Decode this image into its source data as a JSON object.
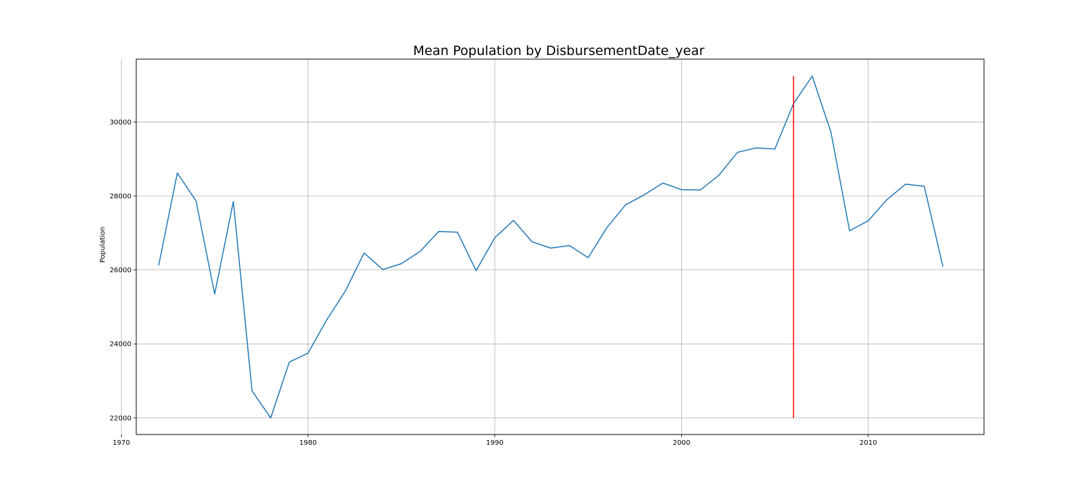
{
  "chart_data": {
    "type": "line",
    "title": "Mean Population by DisbursementDate_year",
    "xlabel": "",
    "ylabel": "Population",
    "xlim": [
      1970.8,
      2016.2
    ],
    "ylim": [
      21550,
      31700
    ],
    "grid": true,
    "xticks": [
      1970,
      1980,
      1990,
      2000,
      2010
    ],
    "yticks": [
      22000,
      24000,
      26000,
      28000,
      30000
    ],
    "line_color": "#1f77b4",
    "series": [
      {
        "x": [
          1972,
          1973,
          1974,
          1975,
          1976,
          1977,
          1978,
          1979,
          1980,
          1981,
          1982,
          1983,
          1984,
          1985,
          1986,
          1987,
          1988,
          1989,
          1990,
          1991,
          1992,
          1993,
          1994,
          1995,
          1996,
          1997,
          1998,
          1999,
          2000,
          2001,
          2002,
          2003,
          2004,
          2005,
          2006,
          2007,
          2008,
          2009,
          2010,
          2011,
          2012,
          2013,
          2014
        ],
        "values": [
          26120,
          28620,
          27870,
          25350,
          27850,
          22730,
          22000,
          23510,
          23750,
          24650,
          25430,
          26460,
          26010,
          26170,
          26500,
          27040,
          27020,
          25980,
          26870,
          27340,
          26760,
          26590,
          26660,
          26330,
          27140,
          27760,
          28030,
          28350,
          28170,
          28160,
          28560,
          29180,
          29300,
          29270,
          30500,
          31240,
          29730,
          27060,
          27330,
          27900,
          28320,
          28260,
          26090
        ]
      }
    ],
    "vline": {
      "x": 2006,
      "ymin": 22000,
      "ymax": 31240,
      "color": "#ff0000"
    }
  }
}
